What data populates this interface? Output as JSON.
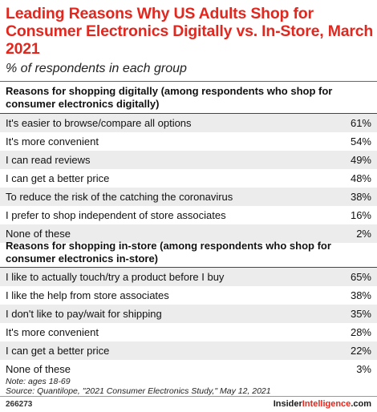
{
  "chart_data": {
    "type": "table",
    "title": "Leading Reasons Why US Adults Shop for Consumer Electronics Digitally vs. In-Store, March 2021",
    "subtitle": "% of respondents in each group",
    "sections": [
      {
        "header": "Reasons for shopping digitally (among respondents who shop for consumer electronics digitally)",
        "rows": [
          {
            "label": "It's easier to browse/compare all options",
            "value": "61%"
          },
          {
            "label": "It's more convenient",
            "value": "54%"
          },
          {
            "label": "I can read reviews",
            "value": "49%"
          },
          {
            "label": "I can get a better price",
            "value": "48%"
          },
          {
            "label": "To reduce the risk of the catching the coronavirus",
            "value": "38%"
          },
          {
            "label": "I prefer to shop independent of store associates",
            "value": "16%"
          },
          {
            "label": "None of these",
            "value": "2%"
          }
        ]
      },
      {
        "header": "Reasons for shopping in-store (among respondents who shop for consumer electronics in-store)",
        "rows": [
          {
            "label": "I like to actually touch/try a product before I buy",
            "value": "65%"
          },
          {
            "label": "I like the help from store associates",
            "value": "38%"
          },
          {
            "label": "I don't like to pay/wait for shipping",
            "value": "35%"
          },
          {
            "label": "It's more convenient",
            "value": "28%"
          },
          {
            "label": "I can get a better price",
            "value": "22%"
          },
          {
            "label": "None of these",
            "value": "3%"
          }
        ]
      }
    ],
    "note": "Note: ages 18-69",
    "source": "Source: Quantilope, \"2021 Consumer Electronics Study,\" May 12, 2021"
  },
  "footer": {
    "chart_id": "266273",
    "brand_part1": "Insider",
    "brand_part2": "Intelligence",
    "brand_suffix": ".com"
  },
  "colors": {
    "title": "#e2271e",
    "row_shade": "#ececec"
  }
}
